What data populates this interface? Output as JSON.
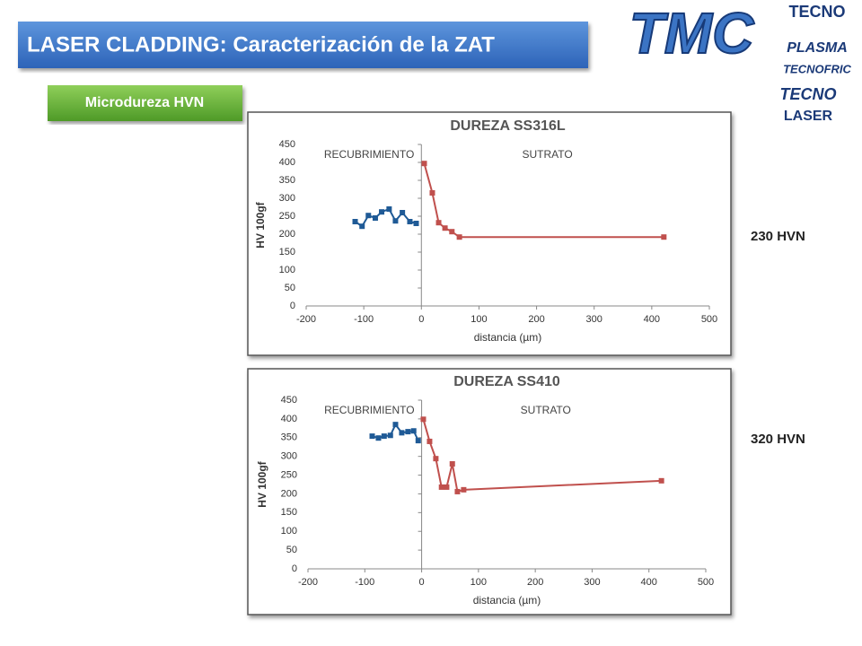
{
  "header": {
    "title": "LASER CLADDING: Caracterización de la ZAT",
    "button": "Microdureza HVN"
  },
  "logos": [
    "TMC",
    "TECNO",
    "PLASMA",
    "TECNOFRIC",
    "TECNO",
    "LASER"
  ],
  "side_labels": [
    "230 HVN",
    "320 HVN"
  ],
  "chart_data": [
    {
      "type": "line",
      "title": "DUREZA SS316L",
      "xlabel": "distancia (µm)",
      "ylabel": "HV 100gf",
      "annotations": [
        "RECUBRIMIENTO",
        "SUTRATO"
      ],
      "xlim": [
        -200,
        500
      ],
      "xticks": [
        -200,
        -100,
        0,
        100,
        200,
        300,
        400,
        500
      ],
      "ylim": [
        0,
        450
      ],
      "yticks": [
        0,
        50,
        100,
        150,
        200,
        250,
        300,
        350,
        400,
        450
      ],
      "series": [
        {
          "color": "#1f5a96",
          "x": [
            -115,
            -103,
            -92,
            -80,
            -69,
            -56,
            -45,
            -33,
            -20,
            -9
          ],
          "values": [
            235,
            222,
            252,
            245,
            262,
            270,
            237,
            260,
            235,
            230
          ]
        },
        {
          "color": "#c0504d",
          "x": [
            5,
            19,
            30,
            41,
            53,
            66,
            421
          ],
          "values": [
            397,
            315,
            232,
            217,
            207,
            192,
            192
          ]
        }
      ]
    },
    {
      "type": "line",
      "title": "DUREZA SS410",
      "xlabel": "distancia (µm)",
      "ylabel": "HV 100gf",
      "annotations": [
        "RECUBRIMIENTO",
        "SUTRATO"
      ],
      "xlim": [
        -200,
        500
      ],
      "xticks": [
        -200,
        -100,
        0,
        100,
        200,
        300,
        400,
        500
      ],
      "ylim": [
        0,
        450
      ],
      "yticks": [
        0,
        50,
        100,
        150,
        200,
        250,
        300,
        350,
        400,
        450
      ],
      "series": [
        {
          "color": "#1f5a96",
          "x": [
            -87,
            -76,
            -66,
            -55,
            -46,
            -35,
            -24,
            -14,
            -6
          ],
          "values": [
            354,
            349,
            354,
            356,
            385,
            363,
            366,
            368,
            342
          ]
        },
        {
          "color": "#c0504d",
          "x": [
            3,
            14,
            25,
            35,
            44,
            54,
            63,
            74,
            422
          ],
          "values": [
            399,
            340,
            294,
            218,
            218,
            280,
            206,
            211,
            235
          ]
        }
      ]
    }
  ]
}
